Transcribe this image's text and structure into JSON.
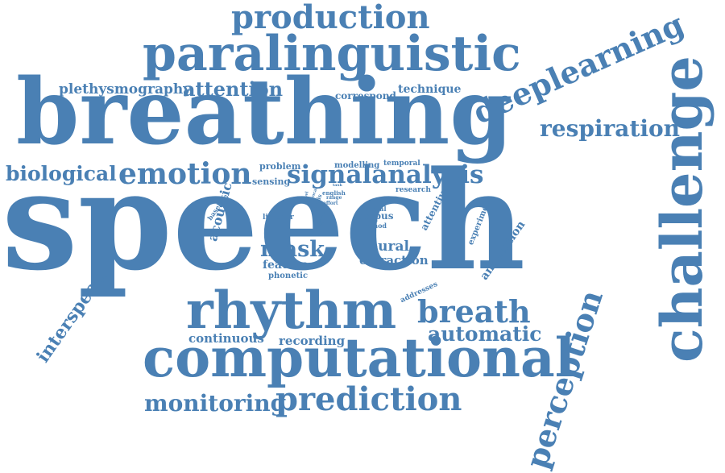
{
  "color": "#4a80b4",
  "words": [
    {
      "id": "speech",
      "text": "speech",
      "weight": 100
    },
    {
      "id": "breathing",
      "text": "breathing",
      "weight": 60
    },
    {
      "id": "paralinguistic",
      "text": "paralinguistic",
      "weight": 40
    },
    {
      "id": "computational",
      "text": "computational",
      "weight": 38
    },
    {
      "id": "rhythm",
      "text": "rhythm",
      "weight": 37
    },
    {
      "id": "challenge",
      "text": "challenge",
      "weight": 36
    },
    {
      "id": "production",
      "text": "production",
      "weight": 26
    },
    {
      "id": "deeplearning",
      "text": "deeplearning",
      "weight": 25
    },
    {
      "id": "perception",
      "text": "perception",
      "weight": 24
    },
    {
      "id": "prediction",
      "text": "prediction",
      "weight": 24
    },
    {
      "id": "breath",
      "text": "breath",
      "weight": 23
    },
    {
      "id": "emotion",
      "text": "emotion",
      "weight": 22
    },
    {
      "id": "signalanalysis",
      "text": "signalanalysis",
      "weight": 22
    },
    {
      "id": "respiration",
      "text": "respiration",
      "weight": 19
    },
    {
      "id": "monitoring",
      "text": "monitoring",
      "weight": 18
    },
    {
      "id": "mask",
      "text": "mask",
      "weight": 16
    },
    {
      "id": "automatic",
      "text": "automatic",
      "weight": 15
    },
    {
      "id": "attention",
      "text": "attention",
      "weight": 15
    },
    {
      "id": "biological",
      "text": "biological",
      "weight": 15
    },
    {
      "id": "interspeech",
      "text": "interspeech",
      "weight": 14
    },
    {
      "id": "plethysmography",
      "text": "plethysmography",
      "weight": 13
    },
    {
      "id": "acoustic",
      "text": "acoustic",
      "weight": 11
    },
    {
      "id": "neural",
      "text": "neural",
      "weight": 11
    },
    {
      "id": "extraction",
      "text": "extraction",
      "weight": 11
    },
    {
      "id": "continuous",
      "text": "continuous",
      "weight": 11
    },
    {
      "id": "recording",
      "text": "recording",
      "weight": 11
    },
    {
      "id": "technique",
      "text": "technique",
      "weight": 10
    },
    {
      "id": "correspond",
      "text": "correspond",
      "weight": 9
    },
    {
      "id": "feature",
      "text": "feature",
      "weight": 10
    },
    {
      "id": "annotation",
      "text": "annotation",
      "weight": 10
    },
    {
      "id": "attentive",
      "text": "attentive",
      "weight": 9
    },
    {
      "id": "corpus",
      "text": "corpus",
      "weight": 9
    },
    {
      "id": "problem",
      "text": "problem",
      "weight": 8
    },
    {
      "id": "sensing",
      "text": "sensing",
      "weight": 8
    },
    {
      "id": "phonetic",
      "text": "phonetic",
      "weight": 8
    },
    {
      "id": "modelling",
      "text": "modelling",
      "weight": 7
    },
    {
      "id": "temporal",
      "text": "temporal",
      "weight": 7
    },
    {
      "id": "research",
      "text": "research",
      "weight": 7
    },
    {
      "id": "experiment",
      "text": "experiment",
      "weight": 7
    },
    {
      "id": "addresses",
      "text": "addresses",
      "weight": 7
    },
    {
      "id": "listener",
      "text": "listener",
      "weight": 7
    },
    {
      "id": "baseline",
      "text": "baseline",
      "weight": 6
    },
    {
      "id": "manual",
      "text": "manual",
      "weight": 6
    },
    {
      "id": "method",
      "text": "method",
      "weight": 6
    },
    {
      "id": "english",
      "text": "english",
      "weight": 5
    },
    {
      "id": "range",
      "text": "range",
      "weight": 4
    },
    {
      "id": "effort",
      "text": "effort",
      "weight": 4
    },
    {
      "id": "task",
      "text": "task",
      "weight": 4
    },
    {
      "id": "thesis",
      "text": "thesis",
      "weight": 5
    },
    {
      "id": "time",
      "text": "time",
      "weight": 5
    },
    {
      "id": "novel",
      "text": "novel",
      "weight": 4
    },
    {
      "id": "vocal",
      "text": "vocal",
      "weight": 4
    },
    {
      "id": "event",
      "text": "event",
      "weight": 4
    }
  ]
}
